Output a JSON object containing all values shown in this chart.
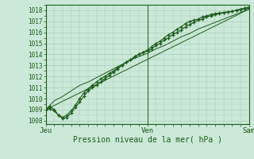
{
  "title": "Pression niveau de la mer( hPa )",
  "ylabel_ticks": [
    1008,
    1009,
    1010,
    1011,
    1012,
    1013,
    1014,
    1015,
    1016,
    1017,
    1018
  ],
  "ylim": [
    1007.7,
    1018.5
  ],
  "xlim": [
    0,
    48
  ],
  "xtick_positions": [
    0,
    24,
    48
  ],
  "xtick_labels": [
    "Jeu",
    "Ven",
    "Sam"
  ],
  "bg_color": "#cce8d8",
  "grid_color": "#aacfba",
  "line_color": "#1a5c1a",
  "line1_x": [
    0,
    1,
    2,
    3,
    4,
    5,
    6,
    7,
    8,
    9,
    10,
    11,
    12,
    13,
    14,
    15,
    16,
    17,
    18,
    19,
    20,
    21,
    22,
    23,
    24,
    25,
    26,
    27,
    28,
    29,
    30,
    31,
    32,
    33,
    34,
    35,
    36,
    37,
    38,
    39,
    40,
    41,
    42,
    43,
    44,
    45,
    46,
    47,
    48
  ],
  "line1_y": [
    1009.0,
    1009.1,
    1008.9,
    1008.5,
    1008.3,
    1008.5,
    1008.9,
    1009.4,
    1010.0,
    1010.5,
    1010.9,
    1011.2,
    1011.5,
    1011.8,
    1012.0,
    1012.3,
    1012.5,
    1012.8,
    1013.0,
    1013.3,
    1013.5,
    1013.8,
    1014.0,
    1014.2,
    1014.3,
    1014.5,
    1014.8,
    1015.0,
    1015.3,
    1015.5,
    1015.8,
    1016.0,
    1016.2,
    1016.5,
    1016.7,
    1016.9,
    1017.1,
    1017.2,
    1017.4,
    1017.5,
    1017.6,
    1017.7,
    1017.8,
    1017.85,
    1017.9,
    1018.0,
    1018.1,
    1018.2,
    1018.3
  ],
  "line2_x": [
    0,
    1,
    2,
    3,
    4,
    5,
    6,
    7,
    8,
    9,
    10,
    11,
    12,
    13,
    14,
    15,
    16,
    17,
    18,
    19,
    20,
    21,
    22,
    23,
    24,
    25,
    26,
    27,
    28,
    29,
    30,
    31,
    32,
    33,
    34,
    35,
    36,
    37,
    38,
    39,
    40,
    41,
    42,
    43,
    44,
    45,
    46,
    47,
    48
  ],
  "line2_y": [
    1009.0,
    1009.3,
    1009.0,
    1008.5,
    1008.2,
    1008.3,
    1008.7,
    1009.2,
    1009.7,
    1010.2,
    1010.7,
    1011.0,
    1011.2,
    1011.5,
    1011.8,
    1012.1,
    1012.4,
    1012.7,
    1013.0,
    1013.3,
    1013.5,
    1013.8,
    1014.0,
    1014.2,
    1014.4,
    1014.7,
    1015.0,
    1015.2,
    1015.5,
    1015.8,
    1016.0,
    1016.3,
    1016.5,
    1016.8,
    1017.0,
    1017.1,
    1017.2,
    1017.4,
    1017.5,
    1017.6,
    1017.7,
    1017.75,
    1017.8,
    1017.85,
    1017.9,
    1018.0,
    1018.1,
    1018.15,
    1018.2
  ],
  "line3_x": [
    0,
    2,
    4,
    6,
    8,
    10,
    12,
    14,
    16,
    18,
    20,
    22,
    24,
    26,
    28,
    30,
    32,
    34,
    36,
    38,
    40,
    42,
    44,
    46,
    48
  ],
  "line3_y": [
    1009.0,
    1009.8,
    1010.2,
    1010.7,
    1011.2,
    1011.5,
    1011.9,
    1012.3,
    1012.7,
    1013.1,
    1013.5,
    1013.8,
    1014.1,
    1014.5,
    1014.8,
    1015.2,
    1015.6,
    1015.9,
    1016.3,
    1016.6,
    1016.9,
    1017.2,
    1017.5,
    1017.8,
    1018.1
  ],
  "line4_x": [
    0,
    48
  ],
  "line4_y": [
    1009.0,
    1018.1
  ]
}
